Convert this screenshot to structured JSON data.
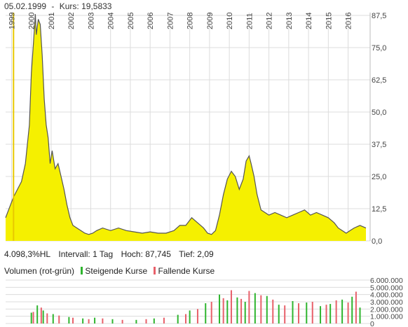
{
  "header": {
    "date": "05.02.1999",
    "separator": "-",
    "price_label": "Kurs: 19,5833"
  },
  "stats": {
    "change": "4.098,3%HL",
    "interval": "Intervall: 1 Tag",
    "high": "Hoch: 87,745",
    "low": "Tief: 2,09"
  },
  "volume_legend": {
    "title": "Volumen (rot-grün)",
    "rising": "Steigende Kurse",
    "falling": "Fallende Kurse"
  },
  "colors": {
    "fill": "#f5f000",
    "line": "#555555",
    "cursor": "#e8c800",
    "grid": "#dcdcdc",
    "vol_up": "#2fb52f",
    "vol_down": "#e8606a"
  },
  "chart_data": [
    {
      "type": "area",
      "title": "",
      "x_ticks": [
        "1999",
        "2000",
        "2001",
        "2002",
        "2003",
        "2004",
        "2005",
        "2006",
        "2007",
        "2008",
        "2009",
        "2010",
        "2011",
        "2012",
        "2013",
        "2014",
        "2015",
        "2016"
      ],
      "y_ticks": [
        "0,0",
        "12,5",
        "25,0",
        "37,5",
        "50,0",
        "62,5",
        "75,0",
        "87,5"
      ],
      "ylim": [
        0,
        87.5
      ],
      "xlim": [
        1998.7,
        2016.9
      ],
      "cursor_x": 1999.1,
      "grid": true,
      "series": [
        {
          "x": [
            1998.7,
            1998.9,
            1999.1,
            1999.3,
            1999.5,
            1999.7,
            1999.9,
            2000.0,
            2000.1,
            2000.2,
            2000.25,
            2000.35,
            2000.45,
            2000.55,
            2000.65,
            2000.75,
            2000.85,
            2000.95,
            2001.05,
            2001.2,
            2001.35,
            2001.5,
            2001.65,
            2001.8,
            2001.95,
            2002.1,
            2002.3,
            2002.5,
            2002.7,
            2002.9,
            2003.1,
            2003.3,
            2003.6,
            2004.0,
            2004.4,
            2004.8,
            2005.2,
            2005.6,
            2006.0,
            2006.4,
            2006.8,
            2007.2,
            2007.5,
            2007.8,
            2008.1,
            2008.4,
            2008.7,
            2008.9,
            2009.1,
            2009.3,
            2009.5,
            2009.7,
            2009.9,
            2010.1,
            2010.3,
            2010.5,
            2010.7,
            2010.85,
            2011.0,
            2011.1,
            2011.25,
            2011.4,
            2011.6,
            2011.8,
            2012.0,
            2012.3,
            2012.6,
            2012.9,
            2013.2,
            2013.5,
            2013.8,
            2014.1,
            2014.4,
            2014.7,
            2015.0,
            2015.3,
            2015.5,
            2015.7,
            2015.9,
            2016.1,
            2016.3,
            2016.6,
            2016.9
          ],
          "y": [
            9,
            13,
            17,
            20,
            23,
            30,
            45,
            65,
            76,
            88,
            80,
            86,
            84,
            72,
            55,
            45,
            40,
            30,
            35,
            28,
            30,
            25,
            20,
            14,
            9,
            6,
            5,
            4,
            3,
            2.5,
            3,
            4,
            5,
            4,
            5,
            4,
            3.5,
            3,
            3.5,
            3,
            3,
            4,
            6,
            6,
            9,
            7,
            5,
            3,
            2.5,
            4,
            10,
            18,
            24,
            27,
            25,
            20,
            24,
            31,
            33,
            30,
            25,
            18,
            12,
            11,
            10,
            11,
            10,
            9,
            10,
            11,
            12,
            10,
            11,
            10,
            9,
            7,
            5,
            4,
            3,
            4,
            5,
            6,
            5
          ]
        }
      ]
    },
    {
      "type": "bar",
      "title": "Volumen (rot-grün)",
      "y_ticks": [
        "0",
        "1.000.000",
        "2.000.000",
        "3.000.000",
        "4.000.000",
        "5.000.000",
        "6.000.000"
      ],
      "ylim": [
        0,
        6000000
      ],
      "series": [
        {
          "name": "Steigende Kurse",
          "x": [
            2000.0,
            2000.3,
            2000.6,
            2001.1,
            2001.9,
            2002.6,
            2003.2,
            2004.1,
            2005.3,
            2006.2,
            2007.4,
            2008.0,
            2008.8,
            2009.5,
            2009.9,
            2010.4,
            2010.8,
            2011.3,
            2011.9,
            2012.5,
            2013.2,
            2013.9,
            2014.6,
            2015.1,
            2015.7,
            2016.2,
            2016.6
          ],
          "values": [
            1500000,
            2500000,
            1800000,
            1300000,
            900000,
            700000,
            800000,
            600000,
            500000,
            700000,
            1200000,
            1800000,
            2800000,
            4000000,
            3200000,
            3600000,
            3000000,
            4200000,
            3800000,
            2600000,
            3100000,
            2900000,
            2400000,
            2700000,
            3300000,
            3700000,
            2200000
          ]
        },
        {
          "name": "Fallende Kurse",
          "x": [
            2000.1,
            2000.5,
            2000.8,
            2001.4,
            2002.1,
            2002.9,
            2003.6,
            2004.6,
            2005.8,
            2006.7,
            2007.8,
            2008.4,
            2009.1,
            2009.7,
            2010.1,
            2010.6,
            2011.0,
            2011.6,
            2012.2,
            2012.8,
            2013.5,
            2014.2,
            2014.9,
            2015.4,
            2016.0,
            2016.4
          ],
          "values": [
            1600000,
            2200000,
            1400000,
            1100000,
            800000,
            600000,
            700000,
            500000,
            600000,
            800000,
            1300000,
            2000000,
            3000000,
            3500000,
            4600000,
            3400000,
            4500000,
            3900000,
            3300000,
            2500000,
            2800000,
            3000000,
            2600000,
            3200000,
            2900000,
            4400000
          ]
        }
      ]
    }
  ]
}
